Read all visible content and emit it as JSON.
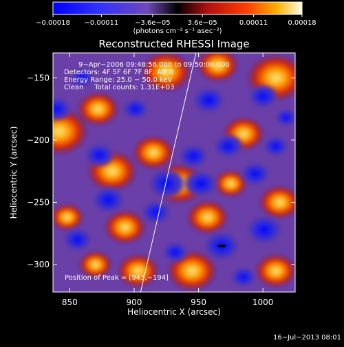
{
  "chart_data": {
    "type": "heatmap",
    "title": "Reconstructed RHESSI Image",
    "xlabel": "Heliocentric X (arcsec)",
    "ylabel": "Heliocentric Y (arcsec)",
    "xlim": [
      837,
      1025
    ],
    "ylim": [
      -322,
      -130
    ],
    "x_ticks": [
      850,
      900,
      950,
      1000
    ],
    "x_tick_labels": [
      "850",
      "900",
      "950",
      "1000"
    ],
    "y_ticks": [
      -150,
      -200,
      -250,
      -300
    ],
    "y_tick_labels": [
      "−150",
      "−200",
      "−250",
      "−300"
    ],
    "colorbar": {
      "range": [
        -0.00018,
        0.00018
      ],
      "ticks": [
        -0.00018,
        -0.00011,
        -3.6e-05,
        3.6e-05,
        0.00011,
        0.00018
      ],
      "tick_labels": [
        "−0.00018",
        "−0.00011",
        "−3.6e−05",
        "3.6e−05",
        "0.00011",
        "0.00018"
      ],
      "units_label": "(photons cm⁻² s⁻¹ asec⁻²)"
    },
    "annotations": [
      "9−Apr−2006 09:48:56.000 to 09:50:08.000",
      "Detectors: 4F 5F 6F 7F 8F, Att 0",
      "Energy Range: 25.0 − 50.0 keV",
      "Clean     Total counts: 1.31E+03"
    ],
    "peak_label": "Position of Peak = [943,−194]",
    "peak": [
      943,
      -194
    ],
    "limb_line": [
      [
        905,
        -322
      ],
      [
        948,
        -130
      ]
    ],
    "hot_blobs": [
      {
        "x": 842,
        "y": -193,
        "r": 14
      },
      {
        "x": 872,
        "y": -175,
        "r": 10
      },
      {
        "x": 883,
        "y": -225,
        "r": 12
      },
      {
        "x": 925,
        "y": -145,
        "r": 12
      },
      {
        "x": 915,
        "y": -210,
        "r": 10
      },
      {
        "x": 935,
        "y": -235,
        "r": 12
      },
      {
        "x": 965,
        "y": -140,
        "r": 10
      },
      {
        "x": 985,
        "y": -195,
        "r": 10
      },
      {
        "x": 1010,
        "y": -150,
        "r": 14
      },
      {
        "x": 1013,
        "y": -250,
        "r": 10
      },
      {
        "x": 957,
        "y": -262,
        "r": 10
      },
      {
        "x": 975,
        "y": -235,
        "r": 8
      },
      {
        "x": 893,
        "y": -270,
        "r": 10
      },
      {
        "x": 848,
        "y": -262,
        "r": 8
      },
      {
        "x": 945,
        "y": -305,
        "r": 12
      },
      {
        "x": 903,
        "y": -305,
        "r": 10
      },
      {
        "x": 1010,
        "y": -305,
        "r": 10
      },
      {
        "x": 870,
        "y": -300,
        "r": 8
      }
    ],
    "cold_blobs": [
      {
        "x": 840,
        "y": -175,
        "r": 8
      },
      {
        "x": 873,
        "y": -212,
        "r": 8
      },
      {
        "x": 901,
        "y": -175,
        "r": 7
      },
      {
        "x": 925,
        "y": -235,
        "r": 10
      },
      {
        "x": 946,
        "y": -213,
        "r": 8
      },
      {
        "x": 952,
        "y": -235,
        "r": 9
      },
      {
        "x": 973,
        "y": -205,
        "r": 8
      },
      {
        "x": 958,
        "y": -168,
        "r": 9
      },
      {
        "x": 1000,
        "y": -165,
        "r": 8
      },
      {
        "x": 994,
        "y": -227,
        "r": 8
      },
      {
        "x": 1010,
        "y": -205,
        "r": 7
      },
      {
        "x": 1001,
        "y": -272,
        "r": 10
      },
      {
        "x": 968,
        "y": -285,
        "r": 10
      },
      {
        "x": 917,
        "y": -258,
        "r": 8
      },
      {
        "x": 880,
        "y": -248,
        "r": 9
      },
      {
        "x": 856,
        "y": -280,
        "r": 8
      },
      {
        "x": 932,
        "y": -290,
        "r": 7
      },
      {
        "x": 985,
        "y": -310,
        "r": 7
      },
      {
        "x": 1018,
        "y": -182,
        "r": 6
      },
      {
        "x": 860,
        "y": -150,
        "r": 6
      }
    ]
  },
  "timestamp": "16−Jul−2013 08:01"
}
